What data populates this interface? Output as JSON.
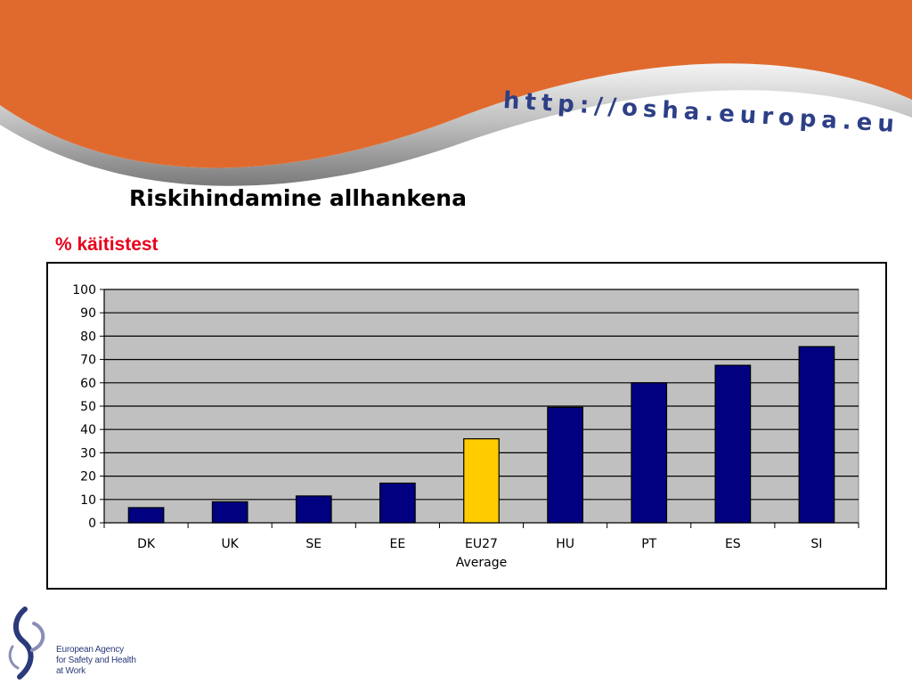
{
  "header": {
    "url_text": "http://osha.europa.eu"
  },
  "slide": {
    "title": "Riskihindamine allhankena",
    "subtitle": "% käitistest"
  },
  "logo": {
    "lines": [
      "European Agency",
      "for Safety and Health",
      "at Work"
    ]
  },
  "colors": {
    "banner_orange": "#e06a2e",
    "plot_background": "#c0c0c0",
    "bar_default": "#000080",
    "bar_highlight": "#ffcc00",
    "subtitle_red": "#e8001c",
    "url_blue": "#2d3f86"
  },
  "chart_data": {
    "type": "bar",
    "title": "",
    "xlabel": "",
    "ylabel": "",
    "ylim": [
      0,
      100
    ],
    "yticks": [
      0,
      10,
      20,
      30,
      40,
      50,
      60,
      70,
      80,
      90,
      100
    ],
    "grid": true,
    "legend": "none",
    "categories": [
      [
        "DK"
      ],
      [
        "UK"
      ],
      [
        "SE"
      ],
      [
        "EE"
      ],
      [
        "EU27",
        "Average"
      ],
      [
        "HU"
      ],
      [
        "PT"
      ],
      [
        "ES"
      ],
      [
        "SI"
      ]
    ],
    "values": [
      6.5,
      9,
      11.5,
      17,
      36,
      49.5,
      60,
      67.5,
      75.5
    ],
    "highlight_index": 4
  }
}
